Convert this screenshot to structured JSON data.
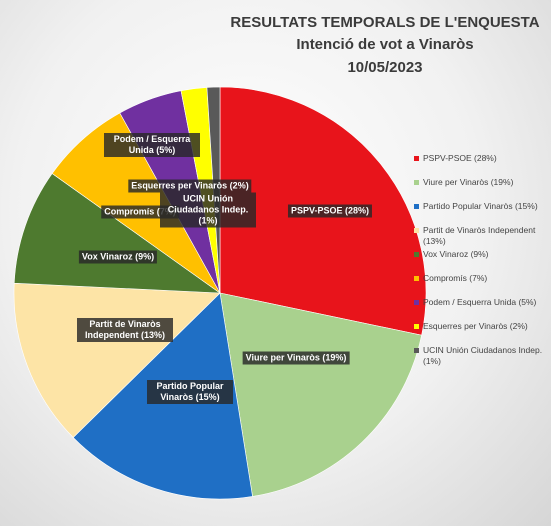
{
  "chart_data": {
    "type": "pie",
    "title": "RESULTATS TEMPORALS DE L'ENQUESTA",
    "subtitle": "Intenció de vot a Vinaròs",
    "date": "10/05/2023",
    "categories": [
      "PSPV-PSOE (28%)",
      "Viure per Vinaròs (19%)",
      "Partido Popular Vinaròs (15%)",
      "Partit de Vinaròs Independent (13%)",
      "Vox Vinaroz (9%)",
      "Compromís (7%)",
      "Podem / Esquerra Unida (5%)",
      "Esquerres per Vinaròs (2%)",
      "UCIN Unión Ciudadanos Indep. (1%)"
    ],
    "values": [
      28,
      19,
      15,
      13,
      9,
      7,
      5,
      2,
      1
    ],
    "colors": [
      "#e8141b",
      "#a9d18e",
      "#1f6fc5",
      "#fde4a6",
      "#4e7a2f",
      "#ffc000",
      "#7030a0",
      "#ffff00",
      "#595959"
    ],
    "legend": "right"
  }
}
